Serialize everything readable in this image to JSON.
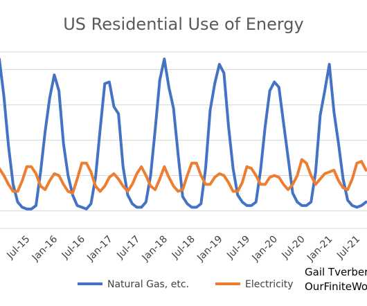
{
  "chart_data": {
    "type": "line",
    "title": "US Residential Use of Energy",
    "x": [
      "Jan-15",
      "Feb-15",
      "Mar-15",
      "Apr-15",
      "May-15",
      "Jun-15",
      "Jul-15",
      "Aug-15",
      "Sep-15",
      "Oct-15",
      "Nov-15",
      "Dec-15",
      "Jan-16",
      "Feb-16",
      "Mar-16",
      "Apr-16",
      "May-16",
      "Jun-16",
      "Jul-16",
      "Aug-16",
      "Sep-16",
      "Oct-16",
      "Nov-16",
      "Dec-16",
      "Jan-17",
      "Feb-17",
      "Mar-17",
      "Apr-17",
      "May-17",
      "Jun-17",
      "Jul-17",
      "Aug-17",
      "Sep-17",
      "Oct-17",
      "Nov-17",
      "Dec-17",
      "Jan-18",
      "Feb-18",
      "Mar-18",
      "Apr-18",
      "May-18",
      "Jun-18",
      "Jul-18",
      "Aug-18",
      "Sep-18",
      "Oct-18",
      "Nov-18",
      "Dec-18",
      "Jan-19",
      "Feb-19",
      "Mar-19",
      "Apr-19",
      "May-19",
      "Jun-19",
      "Jul-19",
      "Aug-19",
      "Sep-19",
      "Oct-19",
      "Nov-19",
      "Dec-19",
      "Jan-20",
      "Feb-20",
      "Mar-20",
      "Apr-20",
      "May-20",
      "Jun-20",
      "Jul-20",
      "Aug-20",
      "Sep-20",
      "Oct-20",
      "Nov-20",
      "Dec-20",
      "Jan-21",
      "Feb-21",
      "Mar-21",
      "Apr-21",
      "May-21",
      "Jun-21",
      "Jul-21",
      "Aug-21",
      "Sep-21"
    ],
    "tick_labels": [
      "Jul-15",
      "Jan-16",
      "Jul-16",
      "Jan-17",
      "Jul-17",
      "Jan-18",
      "Jul-18",
      "Jan-19",
      "Jul-19",
      "Jan-20",
      "Jul-20",
      "Jan-21",
      "Jul-21"
    ],
    "series": [
      {
        "name": "Natural Gas, etc.",
        "color": "#4472c4",
        "values": [
          1.26,
          1.05,
          0.77,
          0.55,
          0.45,
          0.42,
          0.41,
          0.41,
          0.43,
          0.62,
          0.85,
          1.04,
          1.17,
          1.08,
          0.78,
          0.6,
          0.49,
          0.43,
          0.42,
          0.41,
          0.44,
          0.59,
          0.86,
          1.12,
          1.13,
          0.99,
          0.95,
          0.65,
          0.49,
          0.44,
          0.42,
          0.42,
          0.45,
          0.6,
          0.86,
          1.14,
          1.26,
          1.1,
          0.98,
          0.72,
          0.48,
          0.44,
          0.42,
          0.42,
          0.44,
          0.64,
          0.97,
          1.12,
          1.23,
          1.18,
          0.88,
          0.64,
          0.49,
          0.45,
          0.43,
          0.43,
          0.45,
          0.63,
          0.88,
          1.08,
          1.13,
          1.1,
          0.9,
          0.7,
          0.5,
          0.45,
          0.43,
          0.43,
          0.45,
          0.62,
          0.94,
          1.08,
          1.23,
          0.96,
          0.78,
          0.58,
          0.46,
          0.43,
          0.42,
          0.43,
          0.45
        ]
      },
      {
        "name": "Electricity",
        "color": "#ed7d31",
        "values": [
          0.64,
          0.6,
          0.55,
          0.51,
          0.51,
          0.57,
          0.65,
          0.65,
          0.61,
          0.54,
          0.52,
          0.57,
          0.61,
          0.6,
          0.55,
          0.51,
          0.5,
          0.58,
          0.67,
          0.67,
          0.62,
          0.54,
          0.51,
          0.54,
          0.59,
          0.61,
          0.58,
          0.54,
          0.51,
          0.55,
          0.61,
          0.65,
          0.6,
          0.54,
          0.52,
          0.58,
          0.65,
          0.59,
          0.54,
          0.51,
          0.52,
          0.6,
          0.67,
          0.67,
          0.6,
          0.55,
          0.55,
          0.59,
          0.61,
          0.6,
          0.56,
          0.51,
          0.51,
          0.56,
          0.65,
          0.64,
          0.6,
          0.55,
          0.55,
          0.59,
          0.6,
          0.59,
          0.55,
          0.52,
          0.55,
          0.6,
          0.69,
          0.67,
          0.6,
          0.55,
          0.58,
          0.61,
          0.62,
          0.63,
          0.57,
          0.53,
          0.52,
          0.58,
          0.67,
          0.68,
          0.63
        ]
      }
    ],
    "ylim": [
      0.3,
      1.3
    ],
    "grid": true,
    "legend_position": "bottom"
  },
  "annotation": {
    "line1": "Gail Tverberg",
    "line2": "OurFiniteWorld.com"
  }
}
